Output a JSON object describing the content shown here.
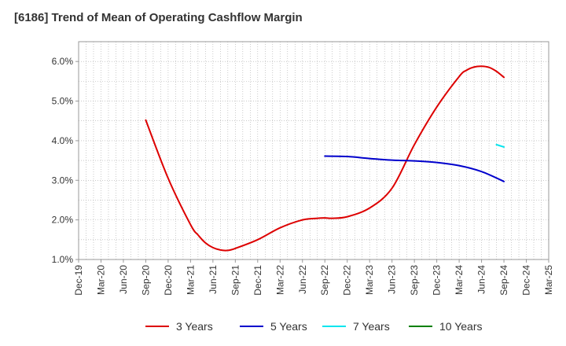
{
  "chart_data": {
    "type": "line",
    "title": "[6186]  Trend of Mean of Operating Cashflow Margin",
    "xlabel": "",
    "ylabel": "",
    "x_ticks": [
      "Dec-19",
      "Mar-20",
      "Jun-20",
      "Sep-20",
      "Dec-20",
      "Mar-21",
      "Jun-21",
      "Sep-21",
      "Dec-21",
      "Mar-22",
      "Jun-22",
      "Sep-22",
      "Dec-22",
      "Mar-23",
      "Jun-23",
      "Sep-23",
      "Dec-23",
      "Mar-24",
      "Jun-24",
      "Sep-24",
      "Dec-24",
      "Mar-25"
    ],
    "y_ticks": [
      "1.0%",
      "2.0%",
      "3.0%",
      "4.0%",
      "5.0%",
      "6.0%"
    ],
    "ylim": [
      1.0,
      6.5
    ],
    "grid": true,
    "legend_position": "bottom",
    "series": [
      {
        "name": "3 Years",
        "color": "#dd0000",
        "x": [
          "Sep-20",
          "Dec-20",
          "Mar-21",
          "Apr-21",
          "May-21",
          "Jun-21",
          "Jul-21",
          "Aug-21",
          "Sep-21",
          "Dec-21",
          "Mar-22",
          "Jun-22",
          "Aug-22",
          "Sep-22",
          "Oct-22",
          "Dec-22",
          "Mar-23",
          "Jun-23",
          "Sep-23",
          "Dec-23",
          "Mar-24",
          "Apr-24",
          "May-24",
          "Jun-24",
          "Jul-24",
          "Aug-24",
          "Sep-24"
        ],
        "values": [
          4.52,
          3.05,
          1.88,
          1.62,
          1.42,
          1.3,
          1.24,
          1.23,
          1.28,
          1.5,
          1.8,
          2.0,
          2.04,
          2.05,
          2.04,
          2.08,
          2.3,
          2.8,
          3.9,
          4.85,
          5.62,
          5.78,
          5.86,
          5.88,
          5.85,
          5.75,
          5.6
        ]
      },
      {
        "name": "5 Years",
        "color": "#0000cc",
        "x": [
          "Sep-22",
          "Dec-22",
          "Mar-23",
          "Jun-23",
          "Sep-23",
          "Dec-23",
          "Mar-24",
          "Jun-24",
          "Sep-24"
        ],
        "values": [
          3.61,
          3.6,
          3.55,
          3.51,
          3.49,
          3.45,
          3.37,
          3.22,
          2.97
        ]
      },
      {
        "name": "7 Years",
        "color": "#00e5ee",
        "x": [
          "Aug-24",
          "Sep-24"
        ],
        "values": [
          3.9,
          3.84
        ]
      },
      {
        "name": "10 Years",
        "color": "#008000",
        "x": [],
        "values": []
      }
    ]
  }
}
